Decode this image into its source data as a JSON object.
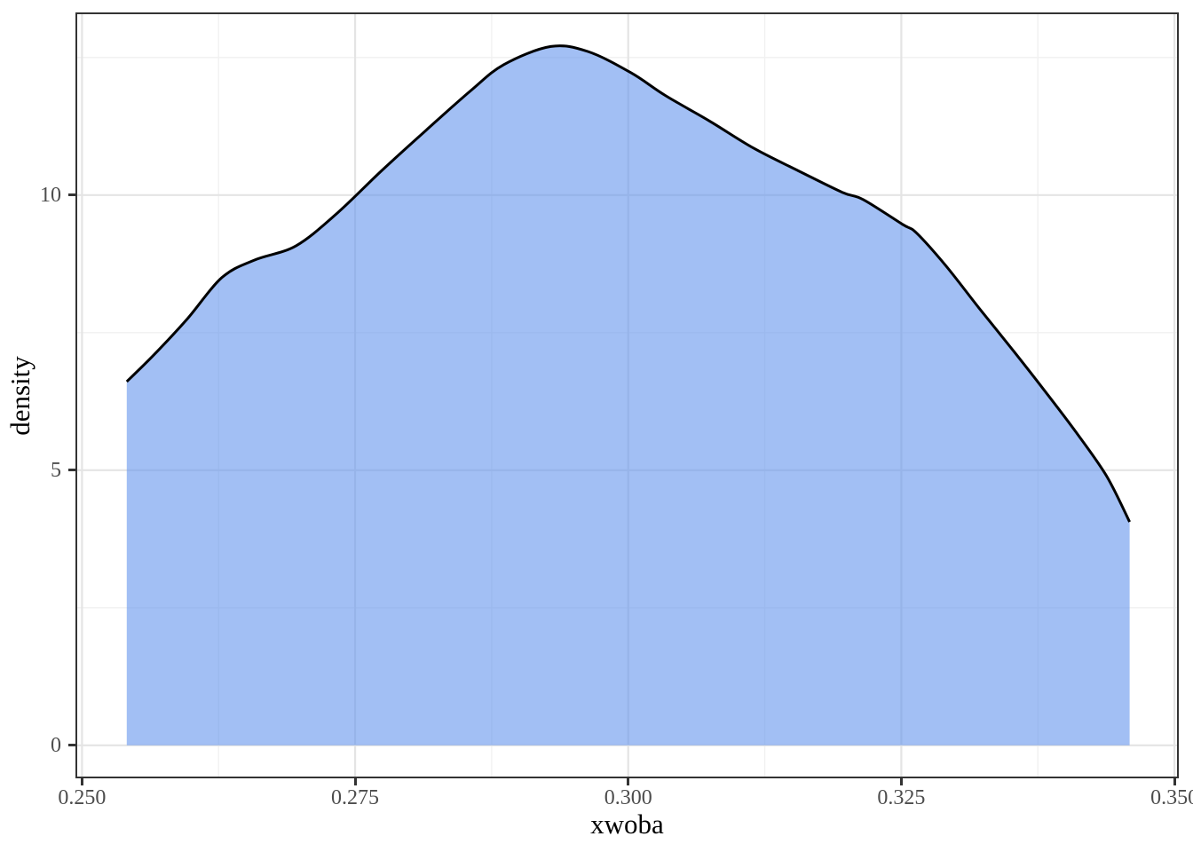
{
  "chart_data": {
    "type": "area",
    "subtype": "kernel-density",
    "title": "",
    "xlabel": "xwoba",
    "ylabel": "density",
    "x_range": [
      0.2494,
      0.3504
    ],
    "y_range": [
      -0.6,
      13.32
    ],
    "grid": true,
    "legend": "none",
    "x_ticks": [
      {
        "value": 0.25,
        "label": "0.250"
      },
      {
        "value": 0.275,
        "label": "0.275"
      },
      {
        "value": 0.3,
        "label": "0.300"
      },
      {
        "value": 0.325,
        "label": "0.325"
      },
      {
        "value": 0.35,
        "label": "0.350"
      }
    ],
    "y_ticks": [
      {
        "value": 0,
        "label": "0"
      },
      {
        "value": 5,
        "label": "5"
      },
      {
        "value": 10,
        "label": "10"
      }
    ],
    "x_minor": [
      0.2625,
      0.2875,
      0.3125,
      0.3375
    ],
    "y_minor": [
      2.5,
      7.5,
      12.5
    ],
    "series": [
      {
        "x": [
          0.2541,
          0.2566,
          0.2596,
          0.2628,
          0.2658,
          0.2696,
          0.2734,
          0.2774,
          0.2815,
          0.2856,
          0.2886,
          0.2929,
          0.2963,
          0.3002,
          0.3034,
          0.3075,
          0.3115,
          0.3156,
          0.3196,
          0.3215,
          0.3251,
          0.3264,
          0.3291,
          0.3321,
          0.3351,
          0.3381,
          0.341,
          0.3438,
          0.3459
        ],
        "y": [
          6.61,
          7.1,
          7.74,
          8.5,
          8.82,
          9.08,
          9.68,
          10.44,
          11.18,
          11.9,
          12.37,
          12.7,
          12.61,
          12.23,
          11.81,
          11.34,
          10.85,
          10.44,
          10.05,
          9.92,
          9.47,
          9.31,
          8.71,
          7.95,
          7.21,
          6.45,
          5.69,
          4.89,
          4.06
        ],
        "baseline": 0
      }
    ],
    "colors": {
      "fill_base": "#6495ED",
      "fill_alpha": 0.6,
      "line": "#000000",
      "grid_major": "#e4e4e4",
      "grid_minor": "#f1f1f1",
      "panel_border": "#333333",
      "tick_mark": "#333333",
      "tick_label": "#4d4d4d",
      "axis_title": "#000000",
      "background": "#ffffff"
    }
  }
}
